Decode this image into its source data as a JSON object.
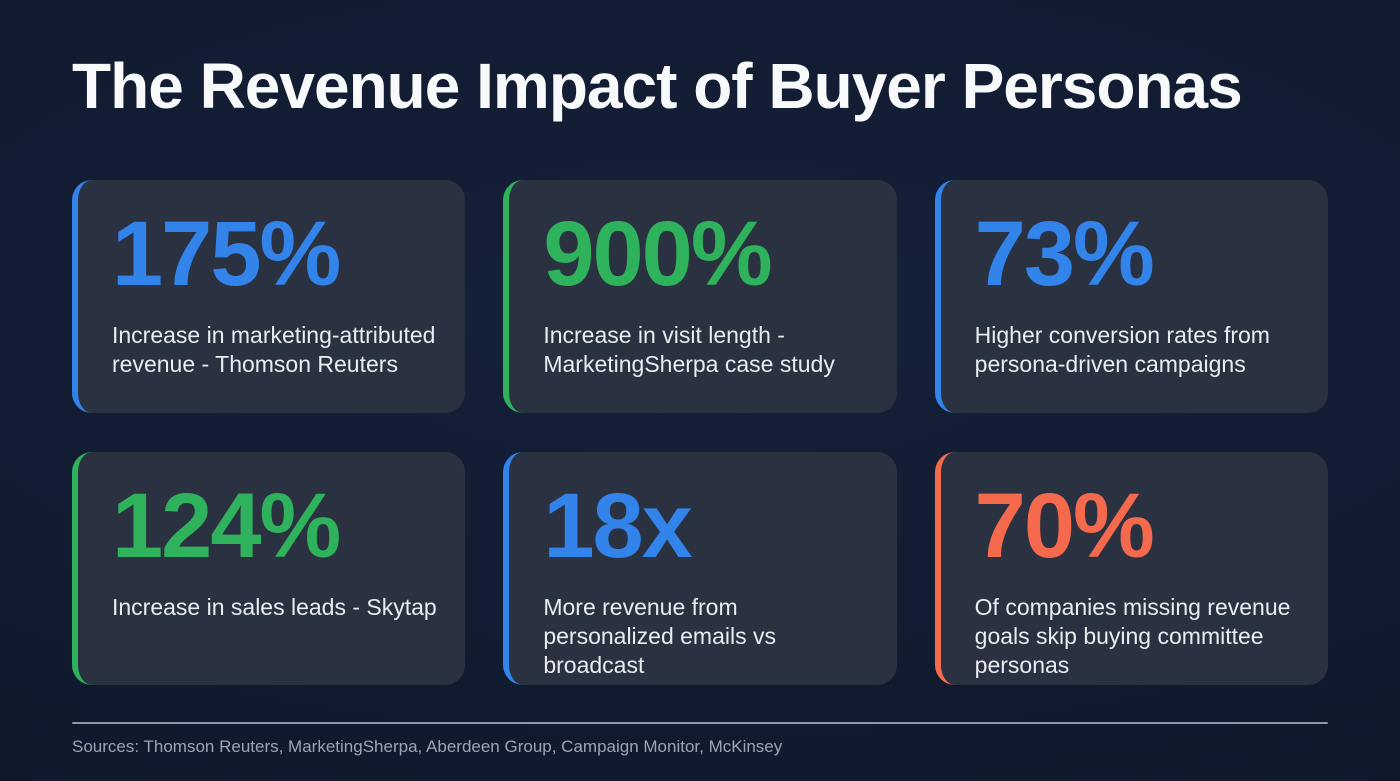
{
  "title": "The Revenue Impact of Buyer Personas",
  "chart_data": {
    "type": "table",
    "title": "The Revenue Impact of Buyer Personas",
    "stats": [
      {
        "value": "175%",
        "label": "Increase in marketing-attributed revenue - Thomson Reuters",
        "accent_hex": "#3283ea"
      },
      {
        "value": "900%",
        "label": "Increase in visit length - MarketingSherpa case study",
        "accent_hex": "#2fb25c"
      },
      {
        "value": "73%",
        "label": "Higher conversion rates from persona-driven campaigns",
        "accent_hex": "#3283ea"
      },
      {
        "value": "124%",
        "label": "Increase in sales leads - Skytap",
        "accent_hex": "#2fb25c"
      },
      {
        "value": "18x",
        "label": "More revenue from personalized emails vs broadcast",
        "accent_hex": "#3283ea"
      },
      {
        "value": "70%",
        "label": "Of companies missing revenue goals skip buying committee personas",
        "accent_hex": "#f56a4d"
      }
    ]
  },
  "footer": {
    "sources": "Sources: Thomson Reuters, MarketingSherpa, Aberdeen Group, Campaign Monitor, McKinsey"
  },
  "colors": {
    "background": "#111b30",
    "card_background": "#2a3140",
    "accent_blue": "#3283ea",
    "accent_green": "#2fb25c",
    "accent_orange": "#f56a4d",
    "divider": "#8e97aa",
    "title_text": "#f8f9fb",
    "body_text": "#e9ecf1",
    "sources_text": "#9ca5b4"
  }
}
